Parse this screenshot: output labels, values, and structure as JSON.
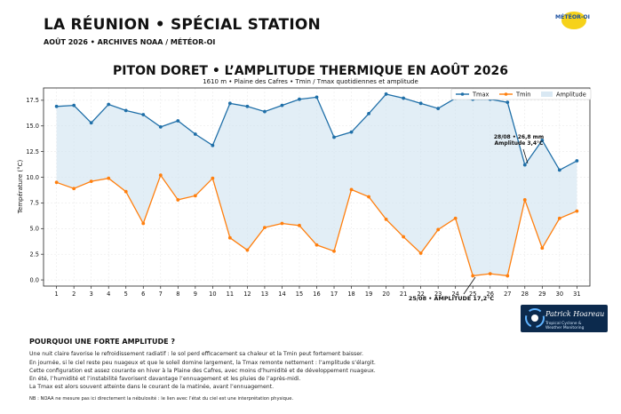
{
  "header": {
    "title": "LA RÉUNION • SPÉCIAL STATION",
    "subtitle": "AOÛT 2026 • ARCHIVES NOAA / MÉTÉOR-OI",
    "logo_text": "MÉTÉOR-OI"
  },
  "chart_data": {
    "type": "line",
    "title": "PITON DORET • L’AMPLITUDE THERMIQUE EN AOÛT 2026",
    "subtitle": "1610 m • Plaine des Cafres • Tmin / Tmax quotidiennes et amplitude",
    "xlabel": "",
    "ylabel": "Température (°C)",
    "xlim": [
      0.25,
      31.75
    ],
    "ylim": [
      -0.6,
      18.7
    ],
    "grid": true,
    "legend_position": "top-right",
    "x": [
      1,
      2,
      3,
      4,
      5,
      6,
      7,
      8,
      9,
      10,
      11,
      12,
      13,
      14,
      15,
      16,
      17,
      18,
      19,
      20,
      21,
      22,
      23,
      24,
      25,
      26,
      27,
      28,
      29,
      30,
      31
    ],
    "x_ticks": [
      "1",
      "2",
      "3",
      "4",
      "5",
      "6",
      "7",
      "8",
      "9",
      "10",
      "11",
      "12",
      "13",
      "14",
      "15",
      "16",
      "17",
      "18",
      "19",
      "20",
      "21",
      "22",
      "23",
      "24",
      "25",
      "26",
      "27",
      "28",
      "29",
      "30",
      "31"
    ],
    "y_ticks": [
      "0.0",
      "2.5",
      "5.0",
      "7.5",
      "10.0",
      "12.5",
      "15.0",
      "17.5"
    ],
    "y_tick_values": [
      0,
      2.5,
      5,
      7.5,
      10,
      12.5,
      15,
      17.5
    ],
    "series": [
      {
        "name": "Tmax",
        "color": "#1f6fa8",
        "values": [
          16.9,
          17.0,
          15.3,
          17.1,
          16.5,
          16.1,
          14.9,
          15.5,
          14.2,
          13.1,
          17.2,
          16.9,
          16.4,
          17.0,
          17.6,
          17.8,
          13.9,
          14.4,
          16.2,
          18.1,
          17.7,
          17.2,
          16.7,
          17.7,
          17.6,
          17.6,
          17.3,
          11.2,
          13.6,
          10.7,
          11.6
        ]
      },
      {
        "name": "Tmin",
        "color": "#ff7f0e",
        "values": [
          9.5,
          8.9,
          9.6,
          9.9,
          8.6,
          5.5,
          10.2,
          7.8,
          8.2,
          9.9,
          4.1,
          2.9,
          5.1,
          5.5,
          5.3,
          3.4,
          2.8,
          8.8,
          8.1,
          5.9,
          4.2,
          2.6,
          4.9,
          6.0,
          0.4,
          0.6,
          0.4,
          7.8,
          3.1,
          6.0,
          6.7
        ]
      }
    ],
    "fill_legend": "Amplitude",
    "fill_color": "#cfe2f0",
    "annotations": [
      {
        "line1": "28/08 • 26,8 mm",
        "line2": "Amplitude 3,4°C",
        "x": 28,
        "y": 11.2
      },
      {
        "text": "25/08 • AMPLITUDE 17,2°C",
        "x": 25,
        "y": 0.4
      }
    ]
  },
  "explanation": {
    "title": "POURQUOI UNE FORTE AMPLITUDE ?",
    "lines": [
      "Une nuit claire favorise le refroidissement radiatif : le sol perd efficacement sa chaleur et la Tmin peut fortement baisser.",
      "En journée, si le ciel reste peu nuageux et que le soleil domine largement, la Tmax remonte nettement : l’amplitude s’élargit.",
      "Cette configuration est assez courante en hiver à la Plaine des Cafres, avec moins d’humidité et de développement nuageux.",
      "En été, l’humidité et l’instabilité favorisent davantage l’ennuagement et les pluies de l’après-midi.",
      "La Tmax est alors souvent atteinte dans le courant de la matinée, avant l’ennuagement."
    ],
    "note": "NB : NOAA ne mesure pas ici directement la nébulosité : le lien avec l’état du ciel est une interprétation physique."
  },
  "branding": {
    "name": "Patrick Hoareau",
    "sub1": "Tropical Cyclone &",
    "sub2": "Weather Monitoring"
  }
}
